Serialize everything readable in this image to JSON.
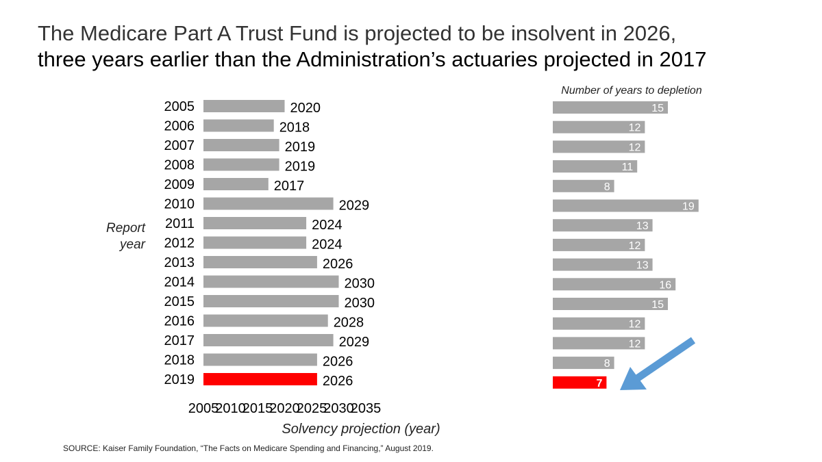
{
  "title": {
    "line1": "The Medicare Part A Trust Fund is projected to be insolvent in 2026,",
    "line2": "three years earlier than the Administration’s actuaries projected in 2017"
  },
  "source": "SOURCE: Kaiser Family Foundation, “The Facts on Medicare Spending and Financing,” August 2019.",
  "colors": {
    "bar": "#a6a6a6",
    "highlight": "#ff0000",
    "arrow": "#5b9bd5"
  },
  "chart_data": [
    {
      "type": "bar",
      "orientation": "horizontal",
      "ylabel": [
        "Report",
        "year"
      ],
      "xlabel": "Solvency projection (year)",
      "xlim": [
        2005,
        2035
      ],
      "xticks": [
        2005,
        2010,
        2015,
        2020,
        2025,
        2030,
        2035
      ],
      "categories": [
        "2005",
        "2006",
        "2007",
        "2008",
        "2009",
        "2010",
        "2011",
        "2012",
        "2013",
        "2014",
        "2015",
        "2016",
        "2017",
        "2018",
        "2019"
      ],
      "values": [
        2020,
        2018,
        2019,
        2019,
        2017,
        2029,
        2024,
        2024,
        2026,
        2030,
        2030,
        2028,
        2029,
        2026,
        2026
      ],
      "highlight_index": 14,
      "data_labels": true,
      "grid": false
    },
    {
      "type": "bar",
      "orientation": "horizontal",
      "title": "Number of years to depletion",
      "categories": [
        "2005",
        "2006",
        "2007",
        "2008",
        "2009",
        "2010",
        "2011",
        "2012",
        "2013",
        "2014",
        "2015",
        "2016",
        "2017",
        "2018",
        "2019"
      ],
      "values": [
        15,
        12,
        12,
        11,
        8,
        19,
        13,
        12,
        13,
        16,
        15,
        12,
        12,
        8,
        7
      ],
      "highlight_index": 14,
      "data_labels": true,
      "annotation": "arrow pointing to 2019 bar"
    }
  ]
}
